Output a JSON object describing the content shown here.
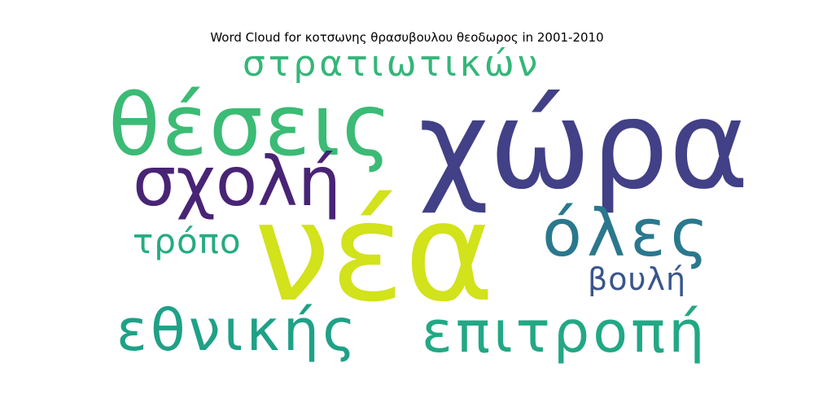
{
  "chart_data": {
    "type": "wordcloud",
    "title": "Word Cloud for κοτσωνης θρασυβουλου θεοδωρος in 2001-2010",
    "words": [
      {
        "text": "νέα",
        "weight": 1.0,
        "color": "#d2e21b"
      },
      {
        "text": "χώρα",
        "weight": 0.92,
        "color": "#424086"
      },
      {
        "text": "θέσεις",
        "weight": 0.72,
        "color": "#3bbb75"
      },
      {
        "text": "σχολή",
        "weight": 0.58,
        "color": "#482475"
      },
      {
        "text": "όλες",
        "weight": 0.5,
        "color": "#2a788e"
      },
      {
        "text": "επιτροπή",
        "weight": 0.48,
        "color": "#22a884"
      },
      {
        "text": "εθνικής",
        "weight": 0.46,
        "color": "#1fa187"
      },
      {
        "text": "στρατιωτικών",
        "weight": 0.3,
        "color": "#34b679"
      },
      {
        "text": "τρόπο",
        "weight": 0.28,
        "color": "#25ab82"
      },
      {
        "text": "βουλή",
        "weight": 0.26,
        "color": "#39568c"
      }
    ]
  }
}
